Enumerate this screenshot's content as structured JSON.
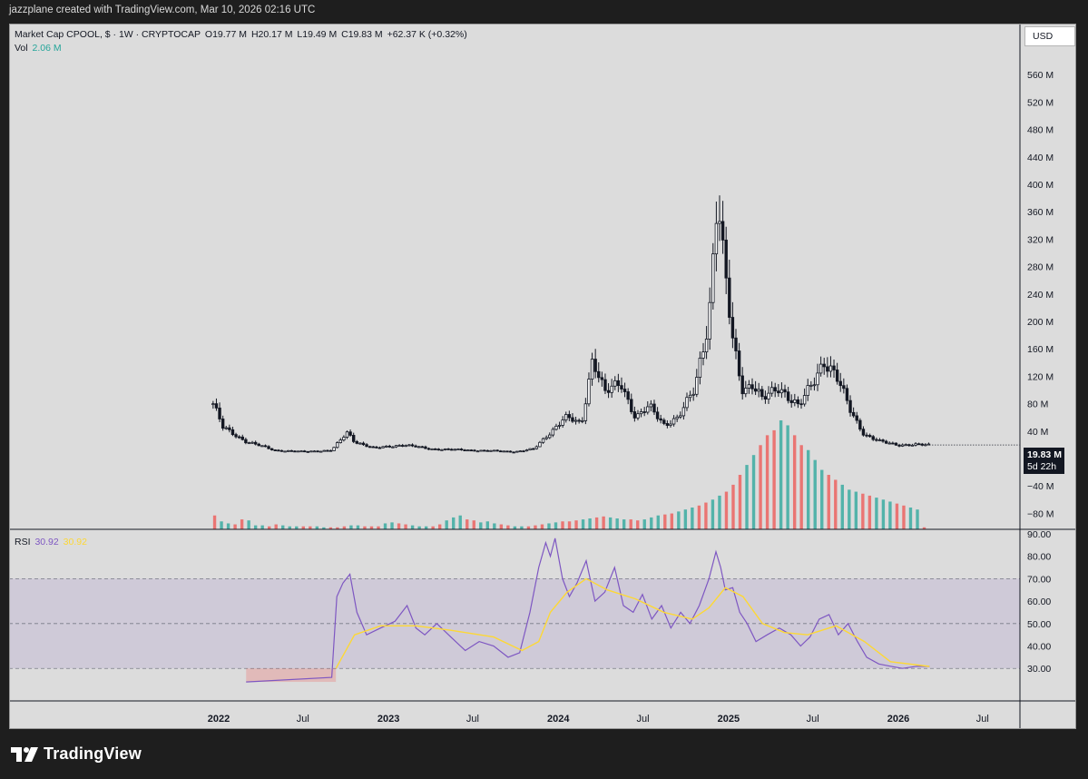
{
  "header": {
    "created_text": "jazzplane created with TradingView.com, Mar 10, 2026 02:16 UTC"
  },
  "legend": {
    "symbol": "Market Cap CPOOL, $ · 1W · CRYPTOCAP",
    "open": "O19.77 M",
    "high": "H20.17 M",
    "low": "L19.49 M",
    "close": "C19.83 M",
    "change": "+62.37 K (+0.32%)",
    "vol_label": "Vol",
    "vol_value": "2.06 M",
    "rsi_label": "RSI",
    "rsi_value": "30.92",
    "rsi_ma_value": "30.92"
  },
  "currency_button": "USD",
  "last_price": {
    "value": "19.83 M",
    "countdown": "5d 22h"
  },
  "brand": {
    "name": "TradingView"
  },
  "colors": {
    "up": "#26a69a",
    "down": "#ef5350",
    "rsi": "#7e57c2",
    "rsi_ma": "#fdd835",
    "candle": "#131722",
    "band": "#7e57c2"
  },
  "chart_data": [
    {
      "type": "candlestick",
      "title": "Market Cap CPOOL, $ · 1W · CRYPTOCAP",
      "yaxis_ticks": [
        "560 M",
        "520 M",
        "480 M",
        "440 M",
        "400 M",
        "360 M",
        "320 M",
        "280 M",
        "240 M",
        "200 M",
        "160 M",
        "120 M",
        "80 M",
        "40 M",
        "−40 M",
        "−80 M"
      ],
      "ylim_millions": [
        -90,
        600
      ],
      "xaxis_ticks": [
        "2022",
        "Jul",
        "2023",
        "Jul",
        "2024",
        "Jul",
        "2025",
        "Jul",
        "2026",
        "Jul"
      ],
      "close_series_millions": {
        "x": [
          "2021-12-20",
          "2022-01-10",
          "2022-03-01",
          "2022-05-01",
          "2022-07-01",
          "2022-09-01",
          "2022-10-05",
          "2022-10-20",
          "2022-12-01",
          "2023-02-01",
          "2023-04-01",
          "2023-07-01",
          "2023-10-01",
          "2023-11-10",
          "2023-12-10",
          "2024-01-15",
          "2024-02-20",
          "2024-03-15",
          "2024-04-10",
          "2024-05-15",
          "2024-06-15",
          "2024-07-15",
          "2024-08-15",
          "2024-09-15",
          "2024-10-20",
          "2024-11-20",
          "2024-12-08",
          "2024-12-20",
          "2025-01-10",
          "2025-02-01",
          "2025-02-20",
          "2025-03-15",
          "2025-04-20",
          "2025-06-01",
          "2025-07-01",
          "2025-07-25",
          "2025-08-20",
          "2025-09-20",
          "2025-10-20",
          "2025-11-20",
          "2026-01-01",
          "2026-03-09"
        ],
        "y": [
          80,
          45,
          25,
          12,
          10,
          12,
          38,
          25,
          15,
          20,
          14,
          12,
          10,
          14,
          35,
          60,
          50,
          150,
          95,
          110,
          60,
          75,
          50,
          60,
          100,
          210,
          385,
          290,
          170,
          100,
          110,
          85,
          105,
          75,
          110,
          145,
          120,
          70,
          35,
          25,
          20,
          19.83
        ]
      },
      "volume_millions": [
        14,
        8,
        6,
        5,
        10,
        9,
        4,
        4,
        3,
        5,
        4,
        3,
        3,
        3,
        3,
        3,
        2,
        2,
        2,
        3,
        4,
        4,
        3,
        3,
        3,
        6,
        7,
        6,
        5,
        4,
        3,
        3,
        3,
        5,
        9,
        12,
        14,
        10,
        9,
        7,
        8,
        6,
        5,
        4,
        3,
        3,
        3,
        4,
        5,
        6,
        7,
        8,
        8,
        9,
        10,
        11,
        12,
        13,
        12,
        11,
        10,
        10,
        9,
        10,
        12,
        14,
        15,
        16,
        18,
        20,
        22,
        24,
        27,
        30,
        34,
        38,
        45,
        55,
        65,
        75,
        85,
        95,
        100,
        110,
        105,
        95,
        85,
        80,
        70,
        60,
        55,
        50,
        45,
        40,
        38,
        36,
        34,
        32,
        30,
        28,
        26,
        24,
        22,
        20,
        2.06
      ],
      "volume_series": {
        "name": "Vol",
        "last": 2.06
      }
    },
    {
      "type": "line",
      "title": "RSI",
      "ylim": [
        22,
        92
      ],
      "yaxis_ticks": [
        "90.00",
        "80.00",
        "70.00",
        "60.00",
        "50.00",
        "40.00",
        "30.00"
      ],
      "bands": [
        30,
        50,
        70
      ],
      "series": [
        {
          "name": "RSI",
          "x": [
            "2022-03-01",
            "2022-09-01",
            "2022-09-12",
            "2022-09-25",
            "2022-10-10",
            "2022-10-25",
            "2022-11-15",
            "2022-12-15",
            "2023-01-15",
            "2023-02-10",
            "2023-03-01",
            "2023-03-20",
            "2023-04-15",
            "2023-05-15",
            "2023-06-15",
            "2023-07-15",
            "2023-08-15",
            "2023-09-15",
            "2023-10-10",
            "2023-11-01",
            "2023-11-20",
            "2023-12-05",
            "2023-12-15",
            "2023-12-25",
            "2024-01-10",
            "2024-01-25",
            "2024-02-10",
            "2024-03-01",
            "2024-03-20",
            "2024-04-10",
            "2024-05-01",
            "2024-05-20",
            "2024-06-10",
            "2024-06-30",
            "2024-07-20",
            "2024-08-10",
            "2024-08-30",
            "2024-09-20",
            "2024-10-10",
            "2024-10-30",
            "2024-11-20",
            "2024-12-05",
            "2024-12-15",
            "2024-12-25",
            "2025-01-10",
            "2025-01-25",
            "2025-02-10",
            "2025-03-01",
            "2025-03-25",
            "2025-04-20",
            "2025-05-15",
            "2025-06-05",
            "2025-06-25",
            "2025-07-15",
            "2025-08-05",
            "2025-08-25",
            "2025-09-15",
            "2025-10-05",
            "2025-10-25",
            "2025-11-20",
            "2025-12-15",
            "2026-01-10",
            "2026-02-10",
            "2026-03-09"
          ],
          "y": [
            24,
            26,
            62,
            68,
            72,
            55,
            45,
            48,
            51,
            58,
            48,
            45,
            50,
            44,
            38,
            42,
            40,
            35,
            37,
            55,
            75,
            86,
            80,
            88,
            70,
            62,
            68,
            78,
            60,
            64,
            75,
            58,
            55,
            63,
            52,
            58,
            48,
            55,
            50,
            58,
            70,
            82,
            75,
            65,
            66,
            55,
            50,
            42,
            45,
            48,
            45,
            40,
            44,
            52,
            54,
            45,
            50,
            42,
            35,
            32,
            31,
            30,
            31,
            30.92
          ]
        },
        {
          "name": "RSI-based MA",
          "x": [
            "2022-09-10",
            "2022-10-20",
            "2022-12-15",
            "2023-03-01",
            "2023-05-15",
            "2023-08-15",
            "2023-10-15",
            "2023-11-20",
            "2023-12-15",
            "2024-01-20",
            "2024-03-01",
            "2024-04-15",
            "2024-06-15",
            "2024-08-15",
            "2024-10-15",
            "2024-11-20",
            "2024-12-25",
            "2025-02-01",
            "2025-03-15",
            "2025-05-01",
            "2025-06-20",
            "2025-08-20",
            "2025-10-20",
            "2025-12-15",
            "2026-03-09"
          ],
          "y": [
            30,
            45,
            49,
            49,
            47,
            44,
            38,
            42,
            55,
            64,
            70,
            65,
            61,
            55,
            52,
            57,
            66,
            62,
            50,
            46,
            45,
            49,
            42,
            33,
            30.92
          ]
        }
      ]
    }
  ]
}
